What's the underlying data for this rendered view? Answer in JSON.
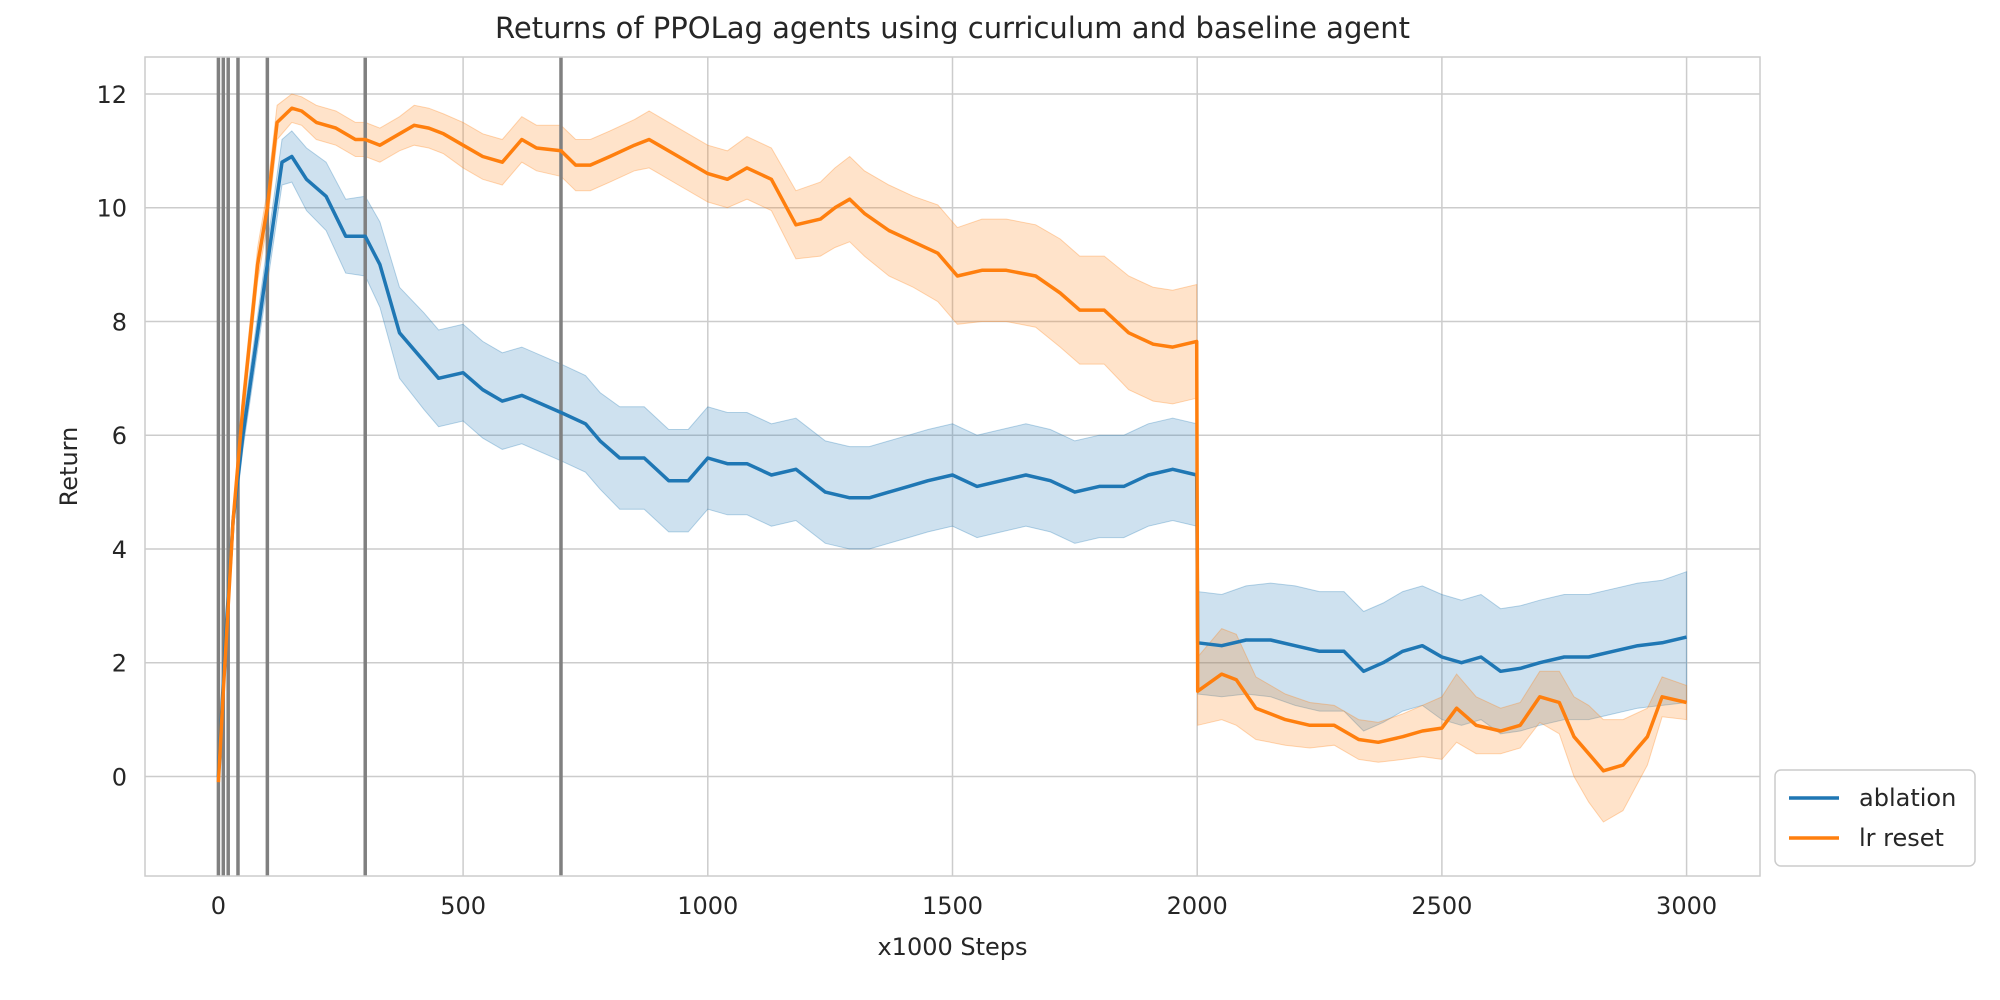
{
  "chart_data": {
    "type": "line",
    "title": "Returns of PPOLag agents using curriculum and baseline agent",
    "xlabel": "x1000 Steps",
    "ylabel": "Return",
    "xlim": [
      -150,
      3150
    ],
    "ylim": [
      -1.75,
      12.65
    ],
    "xticks": [
      0,
      500,
      1000,
      1500,
      2000,
      2500,
      3000
    ],
    "yticks": [
      0,
      2,
      4,
      6,
      8,
      10,
      12
    ],
    "grid": true,
    "legend_position": "lower-right-outside",
    "vlines": [
      0,
      10,
      20,
      40,
      100,
      300,
      700
    ],
    "vline_color": "#808080",
    "series": [
      {
        "name": "ablation",
        "color": "#1f77b4",
        "x": [
          0,
          15,
          30,
          50,
          80,
          100,
          130,
          150,
          180,
          220,
          260,
          300,
          330,
          370,
          420,
          450,
          500,
          540,
          580,
          620,
          700,
          750,
          780,
          820,
          870,
          920,
          960,
          1000,
          1040,
          1080,
          1130,
          1180,
          1240,
          1290,
          1330,
          1370,
          1410,
          1450,
          1500,
          1550,
          1600,
          1650,
          1700,
          1750,
          1800,
          1850,
          1900,
          1950,
          1999,
          2001,
          2050,
          2100,
          2150,
          2200,
          2250,
          2300,
          2340,
          2380,
          2420,
          2460,
          2500,
          2540,
          2580,
          2620,
          2660,
          2700,
          2750,
          2800,
          2850,
          2900,
          2950,
          3000
        ],
        "y": [
          0.0,
          2.5,
          4.5,
          6.0,
          7.8,
          9.0,
          10.8,
          10.9,
          10.5,
          10.2,
          9.5,
          9.5,
          9.0,
          7.8,
          7.3,
          7.0,
          7.1,
          6.8,
          6.6,
          6.7,
          6.4,
          6.2,
          5.9,
          5.6,
          5.6,
          5.2,
          5.2,
          5.6,
          5.5,
          5.5,
          5.3,
          5.4,
          5.0,
          4.9,
          4.9,
          5.0,
          5.1,
          5.2,
          5.3,
          5.1,
          5.2,
          5.3,
          5.2,
          5.0,
          5.1,
          5.1,
          5.3,
          5.4,
          5.3,
          2.35,
          2.3,
          2.4,
          2.4,
          2.3,
          2.2,
          2.2,
          1.85,
          2.0,
          2.2,
          2.3,
          2.1,
          2.0,
          2.1,
          1.85,
          1.9,
          2.0,
          2.1,
          2.1,
          2.2,
          2.3,
          2.35,
          2.45
        ],
        "ci_halfwidth": [
          0.05,
          0.15,
          0.2,
          0.25,
          0.3,
          0.35,
          0.4,
          0.45,
          0.55,
          0.6,
          0.65,
          0.7,
          0.75,
          0.8,
          0.85,
          0.85,
          0.85,
          0.85,
          0.85,
          0.85,
          0.85,
          0.85,
          0.85,
          0.9,
          0.9,
          0.9,
          0.9,
          0.9,
          0.9,
          0.9,
          0.9,
          0.9,
          0.9,
          0.9,
          0.9,
          0.9,
          0.9,
          0.9,
          0.9,
          0.9,
          0.9,
          0.9,
          0.9,
          0.9,
          0.9,
          0.9,
          0.9,
          0.9,
          0.9,
          0.9,
          0.9,
          0.95,
          1.0,
          1.05,
          1.05,
          1.05,
          1.05,
          1.05,
          1.05,
          1.05,
          1.1,
          1.1,
          1.1,
          1.1,
          1.1,
          1.1,
          1.1,
          1.1,
          1.1,
          1.1,
          1.1,
          1.15
        ]
      },
      {
        "name": "lr reset",
        "color": "#ff7f0e",
        "x": [
          0,
          10,
          20,
          30,
          50,
          80,
          100,
          120,
          150,
          170,
          200,
          240,
          280,
          300,
          330,
          370,
          400,
          430,
          460,
          500,
          540,
          580,
          620,
          650,
          700,
          730,
          760,
          800,
          850,
          880,
          900,
          940,
          1000,
          1040,
          1080,
          1130,
          1180,
          1230,
          1260,
          1290,
          1320,
          1370,
          1420,
          1470,
          1510,
          1560,
          1610,
          1670,
          1720,
          1760,
          1810,
          1860,
          1910,
          1950,
          1999,
          2001,
          2050,
          2080,
          2120,
          2180,
          2230,
          2280,
          2330,
          2370,
          2420,
          2460,
          2500,
          2530,
          2570,
          2620,
          2660,
          2700,
          2740,
          2770,
          2800,
          2830,
          2870,
          2920,
          2950,
          3000
        ],
        "y": [
          -0.1,
          1.5,
          3.0,
          4.5,
          6.5,
          9.0,
          10.0,
          11.5,
          11.75,
          11.7,
          11.5,
          11.4,
          11.2,
          11.2,
          11.1,
          11.3,
          11.45,
          11.4,
          11.3,
          11.1,
          10.9,
          10.8,
          11.2,
          11.05,
          11.0,
          10.75,
          10.75,
          10.9,
          11.1,
          11.2,
          11.1,
          10.9,
          10.6,
          10.5,
          10.7,
          10.5,
          9.7,
          9.8,
          10.0,
          10.15,
          9.9,
          9.6,
          9.4,
          9.2,
          8.8,
          8.9,
          8.9,
          8.8,
          8.5,
          8.2,
          8.2,
          7.8,
          7.6,
          7.55,
          7.65,
          1.5,
          1.8,
          1.7,
          1.2,
          1.0,
          0.9,
          0.9,
          0.65,
          0.6,
          0.7,
          0.8,
          0.85,
          1.2,
          0.9,
          0.8,
          0.9,
          1.4,
          1.3,
          0.7,
          0.4,
          0.1,
          0.2,
          0.7,
          1.4,
          1.3
        ],
        "ci_halfwidth": [
          0.05,
          0.1,
          0.15,
          0.2,
          0.25,
          0.3,
          0.3,
          0.3,
          0.25,
          0.25,
          0.3,
          0.3,
          0.3,
          0.3,
          0.3,
          0.3,
          0.35,
          0.35,
          0.35,
          0.4,
          0.4,
          0.4,
          0.4,
          0.4,
          0.45,
          0.45,
          0.45,
          0.45,
          0.45,
          0.5,
          0.5,
          0.5,
          0.5,
          0.5,
          0.55,
          0.55,
          0.6,
          0.65,
          0.7,
          0.75,
          0.75,
          0.8,
          0.8,
          0.85,
          0.85,
          0.9,
          0.9,
          0.9,
          0.95,
          0.95,
          0.95,
          1.0,
          1.0,
          1.0,
          1.0,
          0.6,
          0.8,
          0.8,
          0.55,
          0.45,
          0.4,
          0.35,
          0.35,
          0.35,
          0.4,
          0.45,
          0.55,
          0.6,
          0.5,
          0.4,
          0.4,
          0.45,
          0.55,
          0.7,
          0.85,
          0.9,
          0.8,
          0.5,
          0.35,
          0.3
        ]
      }
    ]
  }
}
